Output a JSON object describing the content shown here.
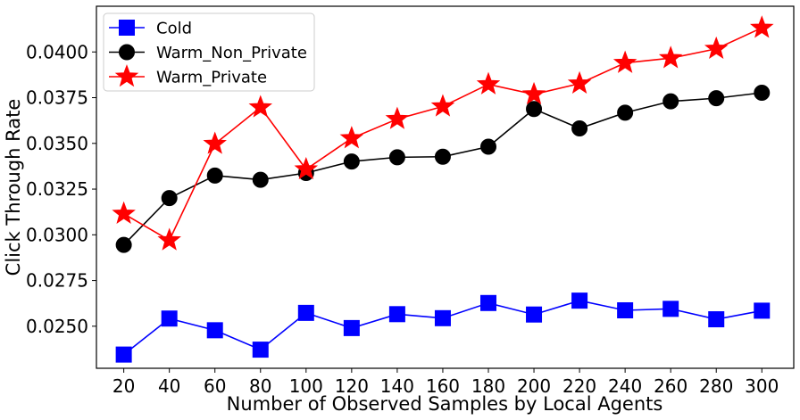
{
  "chart_data": {
    "type": "line",
    "title": "",
    "xlabel": "Number of Observed Samples by Local Agents",
    "ylabel": "Click Through Rate",
    "x": [
      20,
      40,
      60,
      80,
      100,
      120,
      140,
      160,
      180,
      200,
      220,
      240,
      260,
      280,
      300
    ],
    "xlim": [
      8,
      314
    ],
    "ylim": [
      0.0227,
      0.0425
    ],
    "yticks": [
      0.025,
      0.0275,
      0.03,
      0.0325,
      0.035,
      0.0375,
      0.04
    ],
    "ytick_labels": [
      "0.0250",
      "0.0275",
      "0.0300",
      "0.0325",
      "0.0350",
      "0.0375",
      "0.0400"
    ],
    "grid": false,
    "legend_position": "top-left",
    "series": [
      {
        "name": "Cold",
        "color": "#0000ff",
        "marker": "square",
        "values": [
          0.02345,
          0.02542,
          0.02478,
          0.02372,
          0.02573,
          0.0249,
          0.02566,
          0.02544,
          0.02627,
          0.02564,
          0.0264,
          0.02587,
          0.02595,
          0.02538,
          0.02585
        ]
      },
      {
        "name": "Warm_Non_Private",
        "color": "#000000",
        "marker": "circle",
        "values": [
          0.02945,
          0.03201,
          0.03324,
          0.03301,
          0.03338,
          0.03401,
          0.03424,
          0.03427,
          0.03482,
          0.03688,
          0.03582,
          0.03668,
          0.0373,
          0.03747,
          0.03777
        ]
      },
      {
        "name": "Warm_Private",
        "color": "#ff0000",
        "marker": "star",
        "values": [
          0.03115,
          0.0297,
          0.03497,
          0.03697,
          0.03358,
          0.03528,
          0.03633,
          0.03702,
          0.03823,
          0.03768,
          0.03827,
          0.0394,
          0.03966,
          0.04017,
          0.04132
        ]
      }
    ]
  }
}
